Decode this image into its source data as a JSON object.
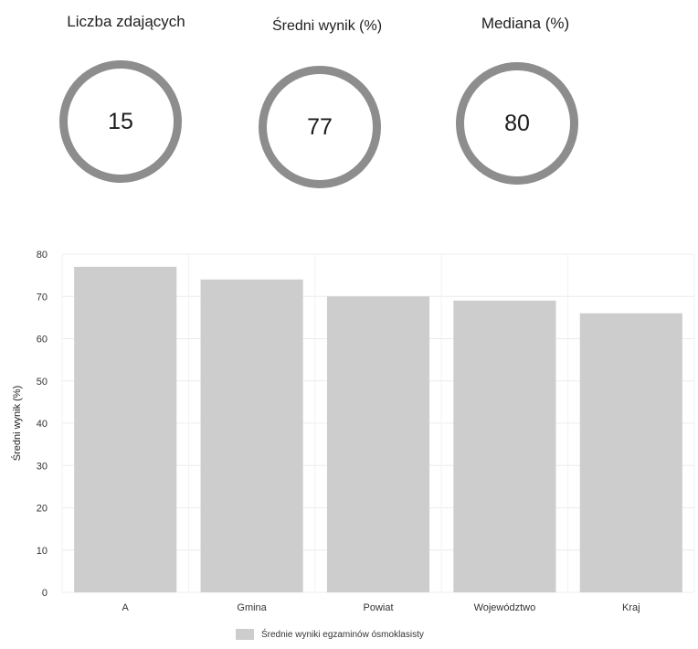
{
  "stats": [
    {
      "label": "Liczba zdających",
      "value": "15"
    },
    {
      "label": "Średni wynik (%)",
      "value": "77"
    },
    {
      "label": "Mediana (%)",
      "value": "80"
    }
  ],
  "colors": {
    "ring": "#8d8d8d",
    "bar": "#cdcdcd",
    "grid": "#ececec",
    "text": "#222222"
  },
  "chart_data": {
    "type": "bar",
    "categories": [
      "A",
      "Gmina",
      "Powiat",
      "Województwo",
      "Kraj"
    ],
    "series": [
      {
        "name": "Średnie wyniki egzaminów ósmoklasisty",
        "values": [
          77,
          74,
          70,
          69,
          66
        ]
      }
    ],
    "title": "",
    "xlabel": "",
    "ylabel": "Średni wynik (%)",
    "ylim": [
      0,
      80
    ],
    "yticks": [
      0,
      10,
      20,
      30,
      40,
      50,
      60,
      70,
      80
    ],
    "grid": true,
    "legend": "bottom"
  }
}
